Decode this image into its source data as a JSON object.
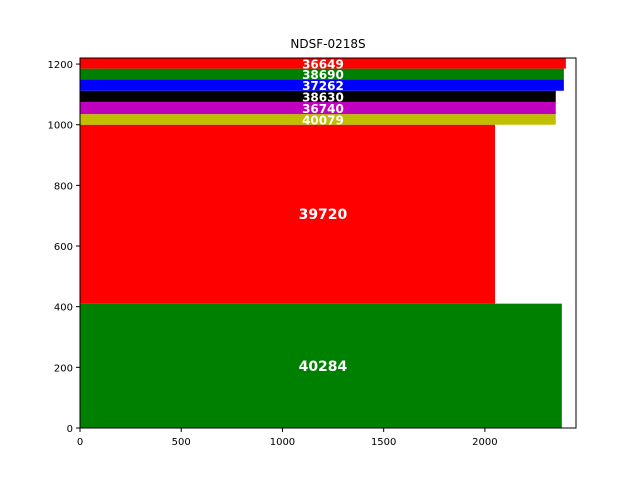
{
  "chart_data": {
    "type": "bar",
    "orientation": "stacked-rectangles",
    "title": "NDSF-0218S",
    "xlabel": "",
    "ylabel": "",
    "xlim": [
      0,
      2450
    ],
    "ylim": [
      0,
      1220
    ],
    "xticks": [
      0,
      500,
      1000,
      1500,
      2000
    ],
    "yticks": [
      0,
      200,
      400,
      600,
      800,
      1000,
      1200
    ],
    "grid": false,
    "blocks": [
      {
        "label": "40284",
        "y0": 0,
        "y1": 410,
        "width": 2380,
        "color": "#008000"
      },
      {
        "label": "39720",
        "y0": 410,
        "y1": 1000,
        "width": 2050,
        "color": "#ff0000"
      },
      {
        "label": "40079",
        "y0": 1000,
        "y1": 1035,
        "width": 2350,
        "color": "#bfbf00"
      },
      {
        "label": "36740",
        "y0": 1035,
        "y1": 1075,
        "width": 2350,
        "color": "#bf00bf"
      },
      {
        "label": "38630",
        "y0": 1075,
        "y1": 1112,
        "width": 2350,
        "color": "#000000"
      },
      {
        "label": "37262",
        "y0": 1112,
        "y1": 1150,
        "width": 2390,
        "color": "#0000ff"
      },
      {
        "label": "38690",
        "y0": 1150,
        "y1": 1185,
        "width": 2390,
        "color": "#008000"
      },
      {
        "label": "36649",
        "y0": 1185,
        "y1": 1220,
        "width": 2400,
        "color": "#ff0000"
      }
    ]
  }
}
